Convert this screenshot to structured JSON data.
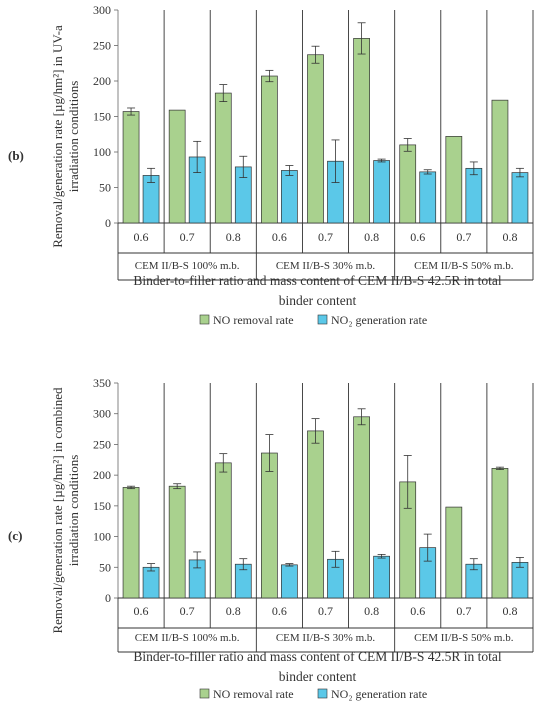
{
  "chart_data": [
    {
      "type": "bar",
      "panel_label": "(b)",
      "ylabel_line1": "Removal/generation rate [µg/hm²] in UV-a",
      "ylabel_line2": "irradiation conditions",
      "xlabel_line1": "Binder-to-filler ratio and mass content of CEM II/B-S 42.5R in total",
      "xlabel_line2": "binder content",
      "ylim": [
        0,
        300
      ],
      "yticks": [
        "0",
        "50",
        "100",
        "150",
        "200",
        "250",
        "300"
      ],
      "categories": [
        "0.6",
        "0.7",
        "0.8",
        "0.6",
        "0.7",
        "0.8",
        "0.6",
        "0.7",
        "0.8"
      ],
      "groups": [
        "CEM II/B-S 100% m.b.",
        "CEM II/B-S 30% m.b.",
        "CEM II/B-S 50% m.b."
      ],
      "series": [
        {
          "name": "NO removal rate",
          "color": "#a9d18e",
          "values": [
            157,
            159,
            183,
            207,
            237,
            260,
            110,
            122,
            173
          ],
          "errors": [
            5,
            0,
            12,
            8,
            12,
            22,
            9,
            0,
            0
          ]
        },
        {
          "name": "NO₂ generation rate",
          "color": "#5bc8e8",
          "values": [
            67,
            93,
            79,
            74,
            87,
            88,
            72,
            77,
            71
          ],
          "errors": [
            10,
            22,
            15,
            7,
            30,
            2,
            3,
            9,
            6
          ]
        }
      ]
    },
    {
      "type": "bar",
      "panel_label": "(c)",
      "ylabel_line1": "Removal/generation rate [µg/hm²] in combined",
      "ylabel_line2": "irradiation conditions",
      "xlabel_line1": "Binder-to-filler ratio and mass content of CEM II/B-S 42.5R in total",
      "xlabel_line2": "binder content",
      "ylim": [
        0,
        350
      ],
      "yticks": [
        "0",
        "50",
        "100",
        "150",
        "200",
        "250",
        "300",
        "350"
      ],
      "categories": [
        "0.6",
        "0.7",
        "0.8",
        "0.6",
        "0.7",
        "0.8",
        "0.6",
        "0.7",
        "0.8"
      ],
      "groups": [
        "CEM II/B-S 100% m.b.",
        "CEM II/B-S 30% m.b.",
        "CEM II/B-S 50% m.b."
      ],
      "series": [
        {
          "name": "NO removal rate",
          "color": "#a9d18e",
          "values": [
            180,
            182,
            220,
            236,
            272,
            295,
            189,
            148,
            211
          ],
          "errors": [
            2,
            4,
            15,
            30,
            20,
            13,
            43,
            0,
            2
          ]
        },
        {
          "name": "NO₂ generation rate",
          "color": "#5bc8e8",
          "values": [
            50,
            62,
            55,
            54,
            63,
            68,
            82,
            55,
            58
          ],
          "errors": [
            6,
            13,
            9,
            2,
            13,
            3,
            22,
            9,
            8
          ]
        }
      ]
    }
  ]
}
